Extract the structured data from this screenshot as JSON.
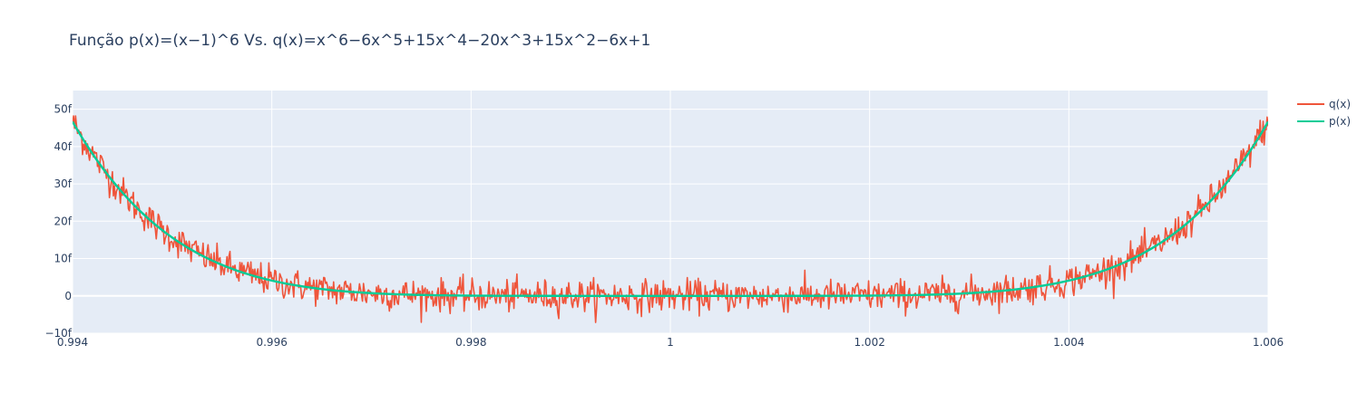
{
  "chart_data": {
    "type": "line",
    "title": "Função p(x)=(x−1)^6 Vs. q(x)=x^6−6x^5+15x^4−20x^3+15x^2−6x+1",
    "xlabel": "",
    "ylabel": "",
    "xlim": [
      0.994,
      1.006
    ],
    "ylim": [
      -10,
      55
    ],
    "x_ticks": [
      {
        "value": 0.994,
        "label": "0.994"
      },
      {
        "value": 0.996,
        "label": "0.996"
      },
      {
        "value": 0.998,
        "label": "0.998"
      },
      {
        "value": 1.0,
        "label": "1"
      },
      {
        "value": 1.002,
        "label": "1.002"
      },
      {
        "value": 1.004,
        "label": "1.004"
      },
      {
        "value": 1.006,
        "label": "1.006"
      }
    ],
    "y_ticks": [
      {
        "value": -10,
        "label": "−10f"
      },
      {
        "value": 0,
        "label": "0"
      },
      {
        "value": 10,
        "label": "10f"
      },
      {
        "value": 20,
        "label": "20f"
      },
      {
        "value": 30,
        "label": "30f"
      },
      {
        "value": 40,
        "label": "40f"
      },
      {
        "value": 50,
        "label": "50f"
      }
    ],
    "y_unit_note": "values in units of 1e-15 (f)",
    "grid": true,
    "legend_position": "top-right",
    "series": [
      {
        "name": "q(x)",
        "color": "#EF553B",
        "formula": "x^6-6x^5+15x^4-20x^3+15x^2-6x+1",
        "x_range": [
          0.994,
          1.006
        ],
        "samples": 1200,
        "noise_amplitude_f": 3.5,
        "sample_points": [
          {
            "x": 0.994,
            "y": 46.7
          },
          {
            "x": 0.995,
            "y": 17.0
          },
          {
            "x": 0.996,
            "y": 4.1
          },
          {
            "x": 0.998,
            "y": 0.1
          },
          {
            "x": 1.0,
            "y": 0.0
          },
          {
            "x": 1.002,
            "y": 0.1
          },
          {
            "x": 1.004,
            "y": 4.1
          },
          {
            "x": 1.005,
            "y": 17.0
          },
          {
            "x": 1.006,
            "y": 46.7
          }
        ]
      },
      {
        "name": "p(x)",
        "color": "#00CC96",
        "formula": "(x-1)^6",
        "x_range": [
          0.994,
          1.006
        ],
        "samples": 400,
        "sample_points": [
          {
            "x": 0.994,
            "y": 46.7
          },
          {
            "x": 0.995,
            "y": 15.6
          },
          {
            "x": 0.996,
            "y": 4.1
          },
          {
            "x": 0.997,
            "y": 0.7
          },
          {
            "x": 0.998,
            "y": 0.06
          },
          {
            "x": 1.0,
            "y": 0.0
          },
          {
            "x": 1.002,
            "y": 0.06
          },
          {
            "x": 1.003,
            "y": 0.7
          },
          {
            "x": 1.004,
            "y": 4.1
          },
          {
            "x": 1.005,
            "y": 15.6
          },
          {
            "x": 1.006,
            "y": 46.7
          }
        ]
      }
    ]
  },
  "colors": {
    "plot_background": "#E5ECF6",
    "grid": "#FFFFFF",
    "text": "#2a3f5f"
  }
}
